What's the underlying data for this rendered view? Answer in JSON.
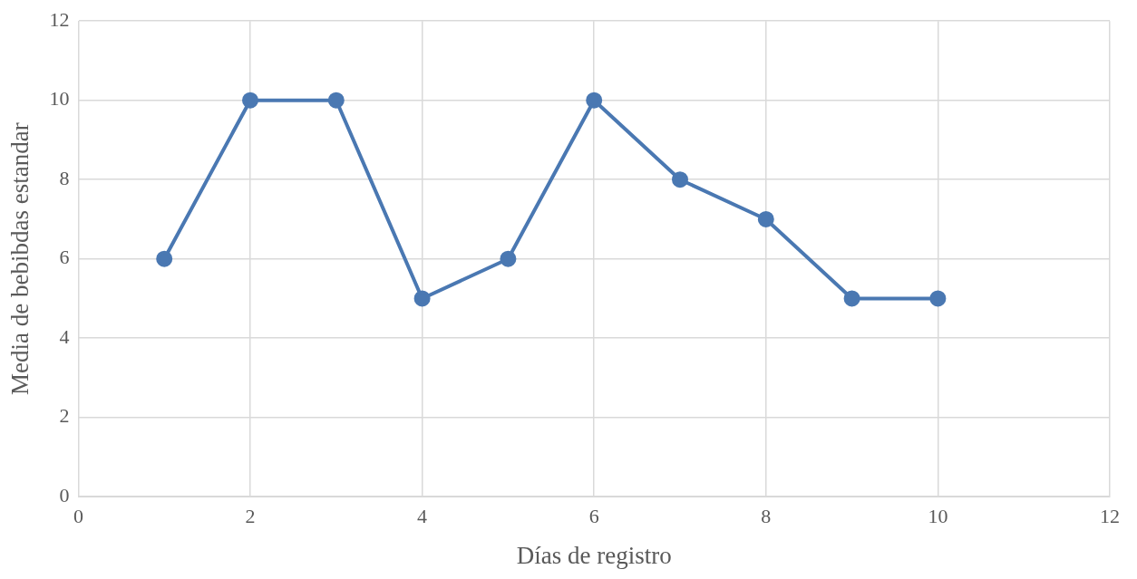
{
  "chart_data": {
    "type": "line",
    "xlabel": "Días de registro",
    "ylabel": "Media de bebibdas estandar",
    "x": [
      1,
      2,
      3,
      4,
      5,
      6,
      7,
      8,
      9,
      10
    ],
    "series": [
      {
        "color": "#4a78b2",
        "values": [
          6,
          10,
          10,
          5,
          6,
          10,
          8,
          7,
          5,
          5
        ]
      }
    ],
    "xlim": [
      0,
      12
    ],
    "xticks": [
      0,
      2,
      4,
      6,
      8,
      10,
      12
    ],
    "ylim": [
      0,
      12
    ],
    "yticks": [
      0,
      2,
      4,
      6,
      8,
      10,
      12
    ],
    "grid": true,
    "legend": false,
    "marker": "circle",
    "line_style": "solid"
  }
}
